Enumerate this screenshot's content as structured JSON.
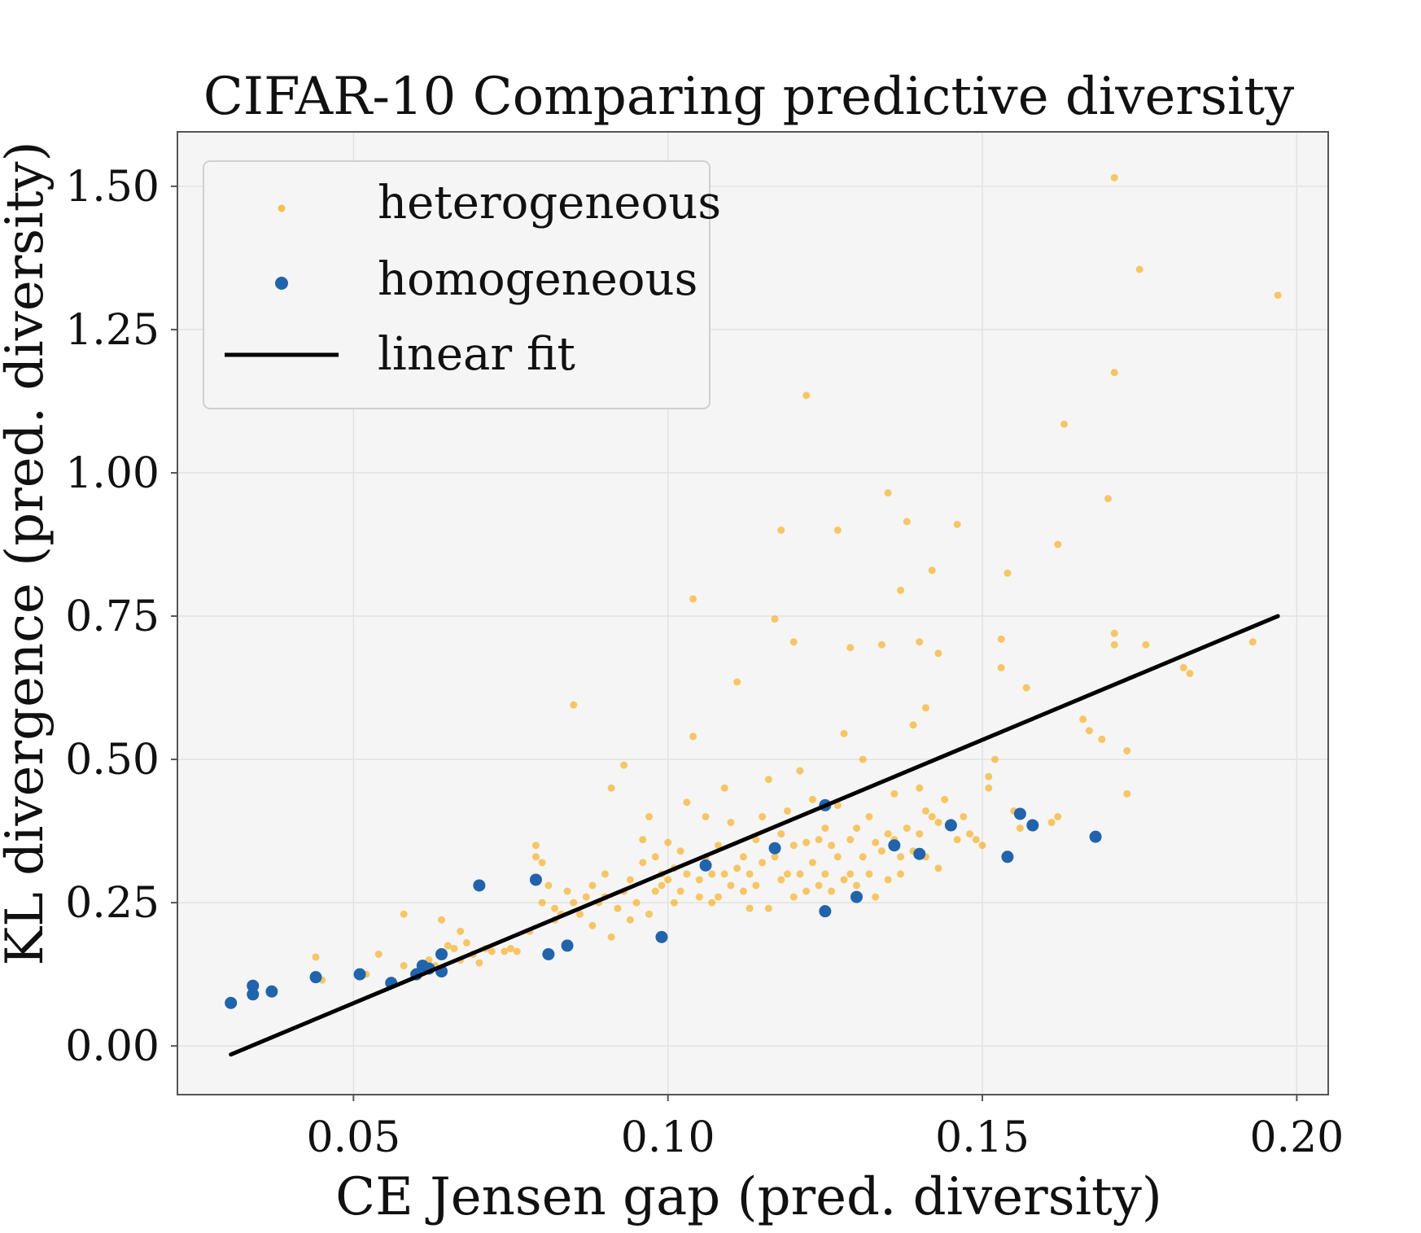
{
  "chart_data": {
    "type": "scatter",
    "title": "CIFAR-10 Comparing predictive diversity",
    "xlabel": "CE Jensen gap (pred. diversity)",
    "ylabel": "KL divergence (pred. diversity)",
    "xlim": [
      0.022,
      0.205
    ],
    "ylim": [
      -0.085,
      1.595
    ],
    "x_ticks": [
      0.05,
      0.1,
      0.15,
      0.2
    ],
    "x_tick_labels": [
      "0.05",
      "0.10",
      "0.15",
      "0.20"
    ],
    "y_ticks": [
      0.0,
      0.25,
      0.5,
      0.75,
      1.0,
      1.25,
      1.5
    ],
    "y_tick_labels": [
      "0.00",
      "0.25",
      "0.50",
      "0.75",
      "1.00",
      "1.25",
      "1.50"
    ],
    "grid": true,
    "legend_position": "top-left",
    "legend": [
      "heterogeneous",
      "homogeneous",
      "linear fit"
    ],
    "colors": {
      "heterogeneous": "#f7ac13",
      "homogeneous": "#1f64ad",
      "linear_fit": "#000000",
      "plot_background": "#f5f5f5"
    },
    "series": [
      {
        "name": "heterogeneous",
        "marker": "point",
        "points": [
          [
            0.044,
            0.155
          ],
          [
            0.045,
            0.115
          ],
          [
            0.052,
            0.125
          ],
          [
            0.054,
            0.16
          ],
          [
            0.056,
            0.11
          ],
          [
            0.058,
            0.14
          ],
          [
            0.058,
            0.23
          ],
          [
            0.06,
            0.13
          ],
          [
            0.061,
            0.13
          ],
          [
            0.062,
            0.15
          ],
          [
            0.063,
            0.14
          ],
          [
            0.064,
            0.22
          ],
          [
            0.065,
            0.175
          ],
          [
            0.066,
            0.17
          ],
          [
            0.067,
            0.2
          ],
          [
            0.067,
            0.15
          ],
          [
            0.068,
            0.18
          ],
          [
            0.069,
            0.16
          ],
          [
            0.07,
            0.145
          ],
          [
            0.071,
            0.17
          ],
          [
            0.072,
            0.165
          ],
          [
            0.074,
            0.165
          ],
          [
            0.075,
            0.17
          ],
          [
            0.076,
            0.165
          ],
          [
            0.078,
            0.2
          ],
          [
            0.079,
            0.33
          ],
          [
            0.079,
            0.35
          ],
          [
            0.08,
            0.32
          ],
          [
            0.08,
            0.25
          ],
          [
            0.081,
            0.28
          ],
          [
            0.082,
            0.22
          ],
          [
            0.082,
            0.24
          ],
          [
            0.083,
            0.23
          ],
          [
            0.084,
            0.27
          ],
          [
            0.085,
            0.25
          ],
          [
            0.085,
            0.595
          ],
          [
            0.086,
            0.23
          ],
          [
            0.087,
            0.26
          ],
          [
            0.088,
            0.21
          ],
          [
            0.088,
            0.28
          ],
          [
            0.089,
            0.25
          ],
          [
            0.09,
            0.3
          ],
          [
            0.09,
            0.26
          ],
          [
            0.091,
            0.19
          ],
          [
            0.091,
            0.45
          ],
          [
            0.092,
            0.24
          ],
          [
            0.093,
            0.27
          ],
          [
            0.093,
            0.49
          ],
          [
            0.094,
            0.22
          ],
          [
            0.094,
            0.29
          ],
          [
            0.095,
            0.25
          ],
          [
            0.096,
            0.36
          ],
          [
            0.096,
            0.32
          ],
          [
            0.097,
            0.23
          ],
          [
            0.097,
            0.4
          ],
          [
            0.098,
            0.27
          ],
          [
            0.098,
            0.33
          ],
          [
            0.099,
            0.28
          ],
          [
            0.099,
            0.3
          ],
          [
            0.1,
            0.29
          ],
          [
            0.1,
            0.355
          ],
          [
            0.101,
            0.25
          ],
          [
            0.101,
            0.31
          ],
          [
            0.102,
            0.27
          ],
          [
            0.102,
            0.34
          ],
          [
            0.103,
            0.3
          ],
          [
            0.103,
            0.425
          ],
          [
            0.104,
            0.54
          ],
          [
            0.104,
            0.78
          ],
          [
            0.105,
            0.29
          ],
          [
            0.105,
            0.26
          ],
          [
            0.106,
            0.33
          ],
          [
            0.106,
            0.4
          ],
          [
            0.107,
            0.3
          ],
          [
            0.107,
            0.25
          ],
          [
            0.108,
            0.26
          ],
          [
            0.108,
            0.35
          ],
          [
            0.109,
            0.3
          ],
          [
            0.109,
            0.45
          ],
          [
            0.11,
            0.28
          ],
          [
            0.11,
            0.39
          ],
          [
            0.111,
            0.31
          ],
          [
            0.111,
            0.635
          ],
          [
            0.112,
            0.27
          ],
          [
            0.112,
            0.33
          ],
          [
            0.113,
            0.3
          ],
          [
            0.113,
            0.24
          ],
          [
            0.114,
            0.36
          ],
          [
            0.114,
            0.28
          ],
          [
            0.115,
            0.32
          ],
          [
            0.115,
            0.4
          ],
          [
            0.116,
            0.24
          ],
          [
            0.116,
            0.465
          ],
          [
            0.117,
            0.33
          ],
          [
            0.117,
            0.745
          ],
          [
            0.118,
            0.29
          ],
          [
            0.118,
            0.37
          ],
          [
            0.119,
            0.3
          ],
          [
            0.119,
            0.41
          ],
          [
            0.12,
            0.26
          ],
          [
            0.12,
            0.35
          ],
          [
            0.121,
            0.3
          ],
          [
            0.121,
            0.48
          ],
          [
            0.122,
            0.27
          ],
          [
            0.122,
            0.355
          ],
          [
            0.123,
            0.32
          ],
          [
            0.123,
            0.43
          ],
          [
            0.124,
            0.28
          ],
          [
            0.124,
            0.36
          ],
          [
            0.125,
            0.3
          ],
          [
            0.125,
            0.38
          ],
          [
            0.126,
            0.27
          ],
          [
            0.126,
            0.35
          ],
          [
            0.127,
            0.33
          ],
          [
            0.127,
            0.42
          ],
          [
            0.128,
            0.29
          ],
          [
            0.128,
            0.545
          ],
          [
            0.129,
            0.36
          ],
          [
            0.129,
            0.3
          ],
          [
            0.13,
            0.28
          ],
          [
            0.13,
            0.38
          ],
          [
            0.131,
            0.33
          ],
          [
            0.131,
            0.5
          ],
          [
            0.132,
            0.3
          ],
          [
            0.132,
            0.4
          ],
          [
            0.133,
            0.355
          ],
          [
            0.133,
            0.26
          ],
          [
            0.134,
            0.34
          ],
          [
            0.134,
            0.7
          ],
          [
            0.135,
            0.37
          ],
          [
            0.135,
            0.29
          ],
          [
            0.136,
            0.36
          ],
          [
            0.136,
            0.44
          ],
          [
            0.137,
            0.33
          ],
          [
            0.137,
            0.3
          ],
          [
            0.138,
            0.38
          ],
          [
            0.138,
            0.915
          ],
          [
            0.139,
            0.34
          ],
          [
            0.139,
            0.56
          ],
          [
            0.14,
            0.37
          ],
          [
            0.14,
            0.45
          ],
          [
            0.141,
            0.33
          ],
          [
            0.141,
            0.41
          ],
          [
            0.142,
            0.4
          ],
          [
            0.142,
            0.83
          ],
          [
            0.143,
            0.31
          ],
          [
            0.143,
            0.39
          ],
          [
            0.144,
            0.43
          ],
          [
            0.145,
            0.39
          ],
          [
            0.146,
            0.36
          ],
          [
            0.146,
            0.91
          ],
          [
            0.147,
            0.4
          ],
          [
            0.148,
            0.37
          ],
          [
            0.149,
            0.36
          ],
          [
            0.15,
            0.35
          ],
          [
            0.151,
            0.47
          ],
          [
            0.151,
            0.45
          ],
          [
            0.152,
            0.5
          ],
          [
            0.153,
            0.66
          ],
          [
            0.153,
            0.71
          ],
          [
            0.154,
            0.825
          ],
          [
            0.155,
            0.41
          ],
          [
            0.156,
            0.38
          ],
          [
            0.157,
            0.625
          ],
          [
            0.161,
            0.39
          ],
          [
            0.162,
            0.4
          ],
          [
            0.162,
            0.875
          ],
          [
            0.163,
            1.085
          ],
          [
            0.166,
            0.57
          ],
          [
            0.167,
            0.55
          ],
          [
            0.169,
            0.535
          ],
          [
            0.17,
            0.955
          ],
          [
            0.171,
            0.72
          ],
          [
            0.171,
            0.7
          ],
          [
            0.171,
            1.175
          ],
          [
            0.173,
            0.515
          ],
          [
            0.173,
            0.44
          ],
          [
            0.175,
            1.355
          ],
          [
            0.176,
            0.7
          ],
          [
            0.182,
            0.66
          ],
          [
            0.183,
            0.65
          ],
          [
            0.193,
            0.705
          ],
          [
            0.197,
            1.31
          ],
          [
            0.122,
            1.135
          ],
          [
            0.12,
            0.705
          ],
          [
            0.118,
            0.9
          ],
          [
            0.127,
            0.9
          ],
          [
            0.129,
            0.695
          ],
          [
            0.135,
            0.965
          ],
          [
            0.137,
            0.795
          ],
          [
            0.14,
            0.705
          ],
          [
            0.141,
            0.59
          ],
          [
            0.143,
            0.685
          ],
          [
            0.171,
            1.515
          ]
        ]
      },
      {
        "name": "homogeneous",
        "marker": "circle",
        "points": [
          [
            0.0305,
            0.075
          ],
          [
            0.034,
            0.105
          ],
          [
            0.034,
            0.09
          ],
          [
            0.037,
            0.095
          ],
          [
            0.044,
            0.12
          ],
          [
            0.051,
            0.125
          ],
          [
            0.056,
            0.11
          ],
          [
            0.06,
            0.125
          ],
          [
            0.061,
            0.14
          ],
          [
            0.062,
            0.135
          ],
          [
            0.064,
            0.16
          ],
          [
            0.064,
            0.13
          ],
          [
            0.07,
            0.28
          ],
          [
            0.079,
            0.29
          ],
          [
            0.081,
            0.16
          ],
          [
            0.084,
            0.175
          ],
          [
            0.099,
            0.19
          ],
          [
            0.106,
            0.315
          ],
          [
            0.117,
            0.345
          ],
          [
            0.125,
            0.42
          ],
          [
            0.125,
            0.235
          ],
          [
            0.13,
            0.26
          ],
          [
            0.136,
            0.35
          ],
          [
            0.14,
            0.335
          ],
          [
            0.145,
            0.385
          ],
          [
            0.154,
            0.33
          ],
          [
            0.156,
            0.405
          ],
          [
            0.158,
            0.385
          ],
          [
            0.168,
            0.365
          ]
        ]
      },
      {
        "name": "linear fit",
        "type": "line",
        "x": [
          0.0305,
          0.197
        ],
        "y": [
          -0.015,
          0.75
        ]
      }
    ]
  }
}
